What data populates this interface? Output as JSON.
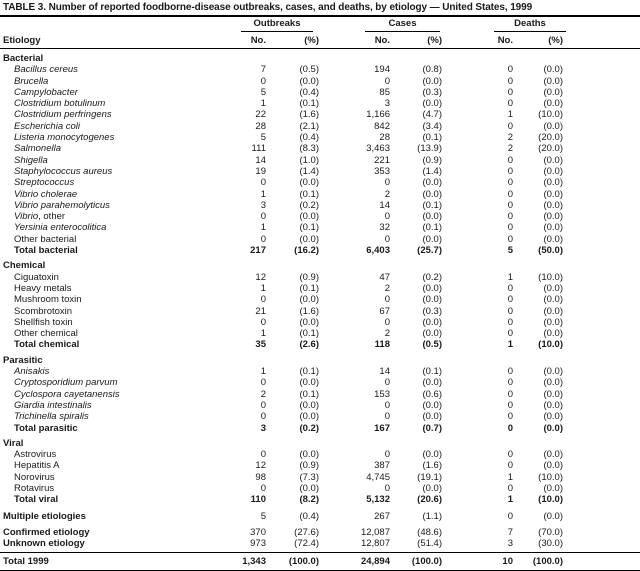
{
  "title": "TABLE 3. Number of reported foodborne-disease outbreaks, cases, and deaths, by etiology — United States, 1999",
  "columns": {
    "etiology": "Etiology",
    "groups": [
      {
        "label": "Outbreaks",
        "no": "No.",
        "pct": "(%)"
      },
      {
        "label": "Cases",
        "no": "No.",
        "pct": "(%)"
      },
      {
        "label": "Deaths",
        "no": "No.",
        "pct": "(%)"
      }
    ]
  },
  "sections": [
    {
      "header": "Bacterial",
      "rows": [
        {
          "label": "Bacillus cereus",
          "italic": true,
          "values": [
            "7",
            "(0.5)",
            "194",
            "(0.8)",
            "0",
            "(0.0)"
          ]
        },
        {
          "label": "Brucella",
          "italic": true,
          "values": [
            "0",
            "(0.0)",
            "0",
            "(0.0)",
            "0",
            "(0.0)"
          ]
        },
        {
          "label": "Campylobacter",
          "italic": true,
          "values": [
            "5",
            "(0.4)",
            "85",
            "(0.3)",
            "0",
            "(0.0)"
          ]
        },
        {
          "label": "Clostridium botulinum",
          "italic": true,
          "values": [
            "1",
            "(0.1)",
            "3",
            "(0.0)",
            "0",
            "(0.0)"
          ]
        },
        {
          "label": "Clostridium perfringens",
          "italic": true,
          "values": [
            "22",
            "(1.6)",
            "1,166",
            "(4.7)",
            "1",
            "(10.0)"
          ]
        },
        {
          "label": "Escherichia coli",
          "italic": true,
          "values": [
            "28",
            "(2.1)",
            "842",
            "(3.4)",
            "0",
            "(0.0)"
          ]
        },
        {
          "label": "Listeria monocytogenes",
          "italic": true,
          "values": [
            "5",
            "(0.4)",
            "28",
            "(0.1)",
            "2",
            "(20.0)"
          ]
        },
        {
          "label": "Salmonella",
          "italic": true,
          "values": [
            "111",
            "(8.3)",
            "3,463",
            "(13.9)",
            "2",
            "(20.0)"
          ]
        },
        {
          "label": "Shigella",
          "italic": true,
          "values": [
            "14",
            "(1.0)",
            "221",
            "(0.9)",
            "0",
            "(0.0)"
          ]
        },
        {
          "label": "Staphylococcus aureus",
          "italic": true,
          "values": [
            "19",
            "(1.4)",
            "353",
            "(1.4)",
            "0",
            "(0.0)"
          ]
        },
        {
          "label": "Streptococcus",
          "italic": true,
          "values": [
            "0",
            "(0.0)",
            "0",
            "(0.0)",
            "0",
            "(0.0)"
          ]
        },
        {
          "label": "Vibrio cholerae",
          "italic": true,
          "values": [
            "1",
            "(0.1)",
            "2",
            "(0.0)",
            "0",
            "(0.0)"
          ]
        },
        {
          "label": "Vibrio parahemolyticus",
          "italic": true,
          "values": [
            "3",
            "(0.2)",
            "14",
            "(0.1)",
            "0",
            "(0.0)"
          ]
        },
        {
          "label": "Vibrio",
          "label_suffix": ", other",
          "italic": true,
          "values": [
            "0",
            "(0.0)",
            "0",
            "(0.0)",
            "0",
            "(0.0)"
          ]
        },
        {
          "label": "Yersinia enterocolitica",
          "italic": true,
          "values": [
            "1",
            "(0.1)",
            "32",
            "(0.1)",
            "0",
            "(0.0)"
          ]
        },
        {
          "label": "Other bacterial",
          "italic": false,
          "values": [
            "0",
            "(0.0)",
            "0",
            "(0.0)",
            "0",
            "(0.0)"
          ]
        },
        {
          "label": "Total bacterial",
          "style": "total",
          "values": [
            "217",
            "(16.2)",
            "6,403",
            "(25.7)",
            "5",
            "(50.0)"
          ]
        }
      ]
    },
    {
      "header": "Chemical",
      "rows": [
        {
          "label": "Ciguatoxin",
          "values": [
            "12",
            "(0.9)",
            "47",
            "(0.2)",
            "1",
            "(10.0)"
          ]
        },
        {
          "label": "Heavy metals",
          "values": [
            "1",
            "(0.1)",
            "2",
            "(0.0)",
            "0",
            "(0.0)"
          ]
        },
        {
          "label": "Mushroom toxin",
          "values": [
            "0",
            "(0.0)",
            "0",
            "(0.0)",
            "0",
            "(0.0)"
          ]
        },
        {
          "label": "Scombrotoxin",
          "values": [
            "21",
            "(1.6)",
            "67",
            "(0.3)",
            "0",
            "(0.0)"
          ]
        },
        {
          "label": "Shellfish toxin",
          "values": [
            "0",
            "(0.0)",
            "0",
            "(0.0)",
            "0",
            "(0.0)"
          ]
        },
        {
          "label": "Other chemical",
          "values": [
            "1",
            "(0.1)",
            "2",
            "(0.0)",
            "0",
            "(0.0)"
          ]
        },
        {
          "label": "Total chemical",
          "style": "total",
          "values": [
            "35",
            "(2.6)",
            "118",
            "(0.5)",
            "1",
            "(10.0)"
          ]
        }
      ]
    },
    {
      "header": "Parasitic",
      "rows": [
        {
          "label": "Anisakis",
          "italic": true,
          "values": [
            "1",
            "(0.1)",
            "14",
            "(0.1)",
            "0",
            "(0.0)"
          ]
        },
        {
          "label": "Cryptosporidium parvum",
          "italic": true,
          "values": [
            "0",
            "(0.0)",
            "0",
            "(0.0)",
            "0",
            "(0.0)"
          ]
        },
        {
          "label": "Cyclospora cayetanensis",
          "italic": true,
          "values": [
            "2",
            "(0.1)",
            "153",
            "(0.6)",
            "0",
            "(0.0)"
          ]
        },
        {
          "label": "Giardia intestinalis",
          "italic": true,
          "values": [
            "0",
            "(0.0)",
            "0",
            "(0.0)",
            "0",
            "(0.0)"
          ]
        },
        {
          "label": "Trichinella spiralis",
          "italic": true,
          "values": [
            "0",
            "(0.0)",
            "0",
            "(0.0)",
            "0",
            "(0.0)"
          ]
        },
        {
          "label": "Total parasitic",
          "style": "total",
          "values": [
            "3",
            "(0.2)",
            "167",
            "(0.7)",
            "0",
            "(0.0)"
          ]
        }
      ]
    },
    {
      "header": "Viral",
      "rows": [
        {
          "label": "Astrovirus",
          "values": [
            "0",
            "(0.0)",
            "0",
            "(0.0)",
            "0",
            "(0.0)"
          ]
        },
        {
          "label": "Hepatitis A",
          "values": [
            "12",
            "(0.9)",
            "387",
            "(1.6)",
            "0",
            "(0.0)"
          ]
        },
        {
          "label": "Norovirus",
          "values": [
            "98",
            "(7.3)",
            "4,745",
            "(19.1)",
            "1",
            "(10.0)"
          ]
        },
        {
          "label": "Rotavirus",
          "values": [
            "0",
            "(0.0)",
            "0",
            "(0.0)",
            "0",
            "(0.0)"
          ]
        },
        {
          "label": "Total viral",
          "style": "total",
          "values": [
            "110",
            "(8.2)",
            "5,132",
            "(20.6)",
            "1",
            "(10.0)"
          ]
        }
      ]
    }
  ],
  "summary_rows": [
    {
      "label": "Multiple etiologies",
      "style": "summary",
      "spacer_before": true,
      "values": [
        "5",
        "(0.4)",
        "267",
        "(1.1)",
        "0",
        "(0.0)"
      ]
    },
    {
      "label": "Confirmed etiology",
      "style": "summary",
      "spacer_before": true,
      "values": [
        "370",
        "(27.6)",
        "12,087",
        "(48.6)",
        "7",
        "(70.0)"
      ]
    },
    {
      "label": "Unknown etiology",
      "style": "summary",
      "values": [
        "973",
        "(72.4)",
        "12,807",
        "(51.4)",
        "3",
        "(30.0)"
      ]
    }
  ],
  "total_row": {
    "label": "Total 1999",
    "style": "total",
    "values": [
      "1,343",
      "(100.0)",
      "24,894",
      "(100.0)",
      "10",
      "(100.0)"
    ]
  }
}
